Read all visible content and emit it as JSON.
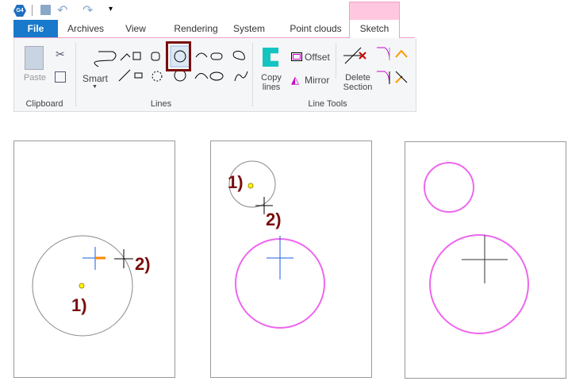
{
  "quick_access": {
    "app_badge": "G4",
    "icons": [
      "save-icon",
      "undo-icon",
      "redo-icon",
      "customize-icon"
    ]
  },
  "tabs": [
    {
      "label": "File",
      "active": false
    },
    {
      "label": "Archives"
    },
    {
      "label": "View"
    },
    {
      "label": "Rendering"
    },
    {
      "label": "System"
    },
    {
      "label": "Point clouds"
    },
    {
      "label": "Sketch",
      "active": true
    }
  ],
  "ribbon": {
    "clipboard": {
      "paste": "Paste",
      "group": "Clipboard"
    },
    "lines": {
      "smart": "Smart",
      "group": "Lines",
      "selected_tool": "circle-center-radius"
    },
    "line_tools": {
      "copy_lines": [
        "Copy",
        "lines"
      ],
      "offset": "Offset",
      "mirror": "Mirror",
      "delete_section": [
        "Delete",
        "Section"
      ],
      "group": "Line Tools"
    }
  },
  "steps": {
    "step1": "1)",
    "step2": "2)"
  },
  "colors": {
    "file_tab": "#1979ca",
    "sketch_tab": "#ffc8e0",
    "selection_frame": "#7a0d0d",
    "result_circle": "#ee66ee",
    "label": "#7a0d0d"
  }
}
